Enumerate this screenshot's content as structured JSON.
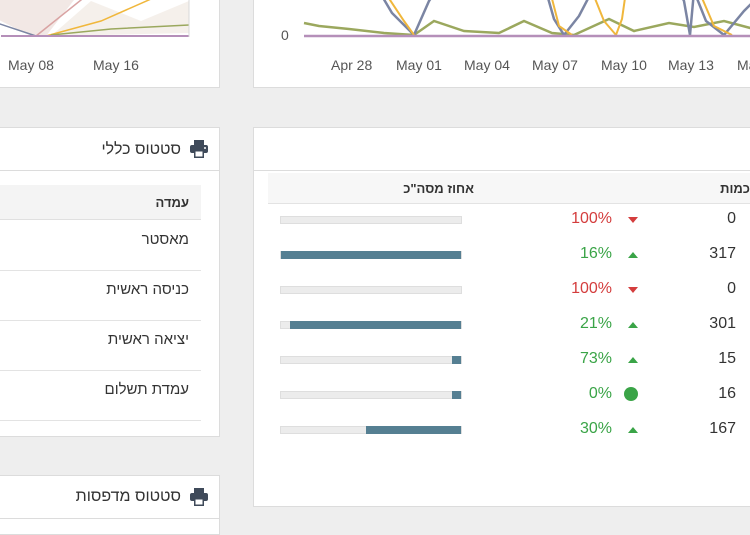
{
  "colors": {
    "up": "#3aa447",
    "down": "#d43d3d",
    "bar_fill": "#557f92",
    "bar_track": "#ececec"
  },
  "chart_left": {
    "x_ticks": [
      "May 08",
      "May 16"
    ]
  },
  "chart_right": {
    "y_ticks": [
      "0"
    ],
    "x_ticks": [
      "Apr 28",
      "May 01",
      "May 04",
      "May 07",
      "May 10",
      "May 13",
      "Ma"
    ]
  },
  "status_panel": {
    "title": "סטטוס כללי",
    "icon": "printer-icon",
    "column_header": "עמדה",
    "rows": [
      "מאסטר",
      "כניסה ראשית",
      "יציאה ראשית",
      "עמדת תשלום"
    ]
  },
  "printers_panel": {
    "title": "סטטוס מדפסות",
    "icon": "printer-icon"
  },
  "table": {
    "headers": {
      "quantity": "כמות",
      "percent": "אחוז מסה\"כ"
    },
    "rows": [
      {
        "quantity": "0",
        "change": "100%",
        "trend": "down",
        "share": 0
      },
      {
        "quantity": "317",
        "change": "16%",
        "trend": "up",
        "share": 1.0
      },
      {
        "quantity": "0",
        "change": "100%",
        "trend": "down",
        "share": 0
      },
      {
        "quantity": "301",
        "change": "21%",
        "trend": "up",
        "share": 0.95
      },
      {
        "quantity": "15",
        "change": "73%",
        "trend": "up",
        "share": 0.05
      },
      {
        "quantity": "16",
        "change": "0%",
        "trend": "same",
        "share": 0.05
      },
      {
        "quantity": "167",
        "change": "30%",
        "trend": "up",
        "share": 0.53
      }
    ]
  }
}
